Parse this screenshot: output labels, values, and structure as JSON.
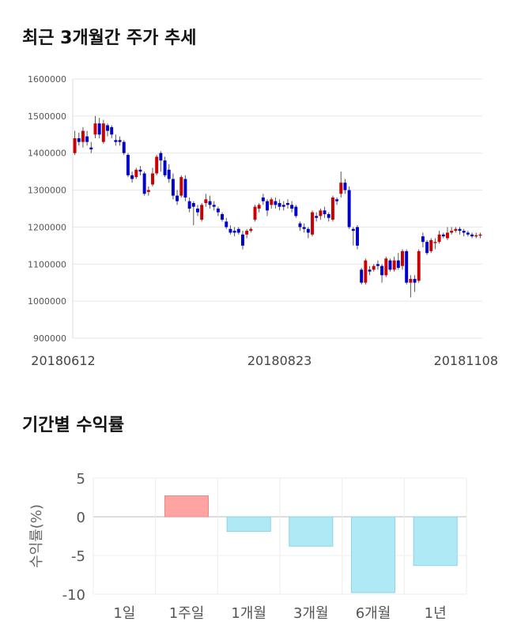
{
  "sections": {
    "trend_title": "최근 3개월간 주가 추세",
    "returns_title": "기간별 수익률"
  },
  "colors": {
    "up": "#cc0000",
    "down": "#0000cc",
    "positive_bar": "#ffa3a3",
    "negative_bar": "#aee9f5"
  },
  "chart_data": [
    {
      "type": "candlestick",
      "title": "최근 3개월간 주가 추세",
      "xlabel": "",
      "ylabel": "",
      "ylim": [
        900000,
        1600000
      ],
      "yticks": [
        900000,
        1000000,
        1100000,
        1200000,
        1300000,
        1400000,
        1500000,
        1600000
      ],
      "x_tick_labels": [
        "20180612",
        "20180823",
        "20181108"
      ],
      "x_tick_index": [
        0,
        50,
        99
      ],
      "grid": true,
      "candles": [
        [
          1400000,
          1440000,
          1460000,
          1395000
        ],
        [
          1440000,
          1430000,
          1455000,
          1420000
        ],
        [
          1430000,
          1460000,
          1470000,
          1415000
        ],
        [
          1445000,
          1430000,
          1460000,
          1420000
        ],
        [
          1415000,
          1410000,
          1430000,
          1400000
        ],
        [
          1450000,
          1480000,
          1500000,
          1440000
        ],
        [
          1480000,
          1450000,
          1495000,
          1440000
        ],
        [
          1430000,
          1480000,
          1490000,
          1425000
        ],
        [
          1475000,
          1460000,
          1480000,
          1445000
        ],
        [
          1470000,
          1450000,
          1475000,
          1440000
        ],
        [
          1435000,
          1430000,
          1450000,
          1420000
        ],
        [
          1435000,
          1430000,
          1445000,
          1420000
        ],
        [
          1430000,
          1400000,
          1435000,
          1395000
        ],
        [
          1395000,
          1340000,
          1400000,
          1335000
        ],
        [
          1340000,
          1330000,
          1350000,
          1320000
        ],
        [
          1335000,
          1355000,
          1360000,
          1330000
        ],
        [
          1355000,
          1350000,
          1365000,
          1340000
        ],
        [
          1345000,
          1290000,
          1350000,
          1285000
        ],
        [
          1295000,
          1300000,
          1310000,
          1285000
        ],
        [
          1315000,
          1345000,
          1360000,
          1310000
        ],
        [
          1345000,
          1390000,
          1395000,
          1340000
        ],
        [
          1400000,
          1380000,
          1405000,
          1350000
        ],
        [
          1380000,
          1340000,
          1390000,
          1335000
        ],
        [
          1355000,
          1330000,
          1370000,
          1320000
        ],
        [
          1330000,
          1285000,
          1345000,
          1275000
        ],
        [
          1285000,
          1270000,
          1300000,
          1260000
        ],
        [
          1285000,
          1335000,
          1340000,
          1280000
        ],
        [
          1330000,
          1280000,
          1340000,
          1270000
        ],
        [
          1270000,
          1250000,
          1280000,
          1240000
        ],
        [
          1265000,
          1255000,
          1270000,
          1205000
        ],
        [
          1250000,
          1240000,
          1260000,
          1230000
        ],
        [
          1220000,
          1260000,
          1265000,
          1215000
        ],
        [
          1265000,
          1275000,
          1290000,
          1255000
        ],
        [
          1270000,
          1260000,
          1285000,
          1250000
        ],
        [
          1260000,
          1255000,
          1270000,
          1245000
        ],
        [
          1250000,
          1240000,
          1255000,
          1230000
        ],
        [
          1235000,
          1220000,
          1240000,
          1215000
        ],
        [
          1215000,
          1200000,
          1225000,
          1195000
        ],
        [
          1195000,
          1185000,
          1205000,
          1180000
        ],
        [
          1190000,
          1185000,
          1200000,
          1175000
        ],
        [
          1195000,
          1185000,
          1200000,
          1180000
        ],
        [
          1180000,
          1150000,
          1190000,
          1140000
        ],
        [
          1180000,
          1190000,
          1195000,
          1170000
        ],
        [
          1190000,
          1195000,
          1200000,
          1185000
        ],
        [
          1220000,
          1255000,
          1260000,
          1215000
        ],
        [
          1250000,
          1260000,
          1265000,
          1240000
        ],
        [
          1280000,
          1270000,
          1290000,
          1260000
        ],
        [
          1270000,
          1245000,
          1275000,
          1230000
        ],
        [
          1260000,
          1275000,
          1280000,
          1250000
        ],
        [
          1270000,
          1260000,
          1280000,
          1250000
        ],
        [
          1265000,
          1255000,
          1275000,
          1245000
        ],
        [
          1260000,
          1255000,
          1270000,
          1245000
        ],
        [
          1265000,
          1260000,
          1275000,
          1250000
        ],
        [
          1260000,
          1250000,
          1270000,
          1240000
        ],
        [
          1255000,
          1230000,
          1260000,
          1225000
        ],
        [
          1210000,
          1200000,
          1215000,
          1190000
        ],
        [
          1200000,
          1195000,
          1210000,
          1185000
        ],
        [
          1195000,
          1185000,
          1200000,
          1170000
        ],
        [
          1180000,
          1240000,
          1245000,
          1175000
        ],
        [
          1230000,
          1225000,
          1240000,
          1215000
        ],
        [
          1230000,
          1245000,
          1250000,
          1220000
        ],
        [
          1245000,
          1235000,
          1255000,
          1225000
        ],
        [
          1235000,
          1225000,
          1240000,
          1215000
        ],
        [
          1220000,
          1280000,
          1285000,
          1215000
        ],
        [
          1275000,
          1270000,
          1280000,
          1260000
        ],
        [
          1290000,
          1320000,
          1350000,
          1280000
        ],
        [
          1320000,
          1300000,
          1330000,
          1290000
        ],
        [
          1300000,
          1200000,
          1310000,
          1195000
        ],
        [
          1195000,
          1190000,
          1200000,
          1150000
        ],
        [
          1200000,
          1150000,
          1205000,
          1140000
        ],
        [
          1085000,
          1050000,
          1090000,
          1045000
        ],
        [
          1050000,
          1110000,
          1115000,
          1045000
        ],
        [
          1085000,
          1080000,
          1095000,
          1070000
        ],
        [
          1085000,
          1095000,
          1100000,
          1080000
        ],
        [
          1100000,
          1095000,
          1110000,
          1085000
        ],
        [
          1095000,
          1070000,
          1100000,
          1050000
        ],
        [
          1070000,
          1115000,
          1120000,
          1065000
        ],
        [
          1110000,
          1085000,
          1115000,
          1080000
        ],
        [
          1085000,
          1110000,
          1120000,
          1080000
        ],
        [
          1110000,
          1090000,
          1130000,
          1085000
        ],
        [
          1095000,
          1135000,
          1140000,
          1085000
        ],
        [
          1135000,
          1050000,
          1140000,
          1045000
        ],
        [
          1050000,
          1060000,
          1070000,
          1010000
        ],
        [
          1060000,
          1050000,
          1070000,
          1025000
        ],
        [
          1055000,
          1135000,
          1140000,
          1050000
        ],
        [
          1175000,
          1160000,
          1185000,
          1145000
        ],
        [
          1160000,
          1130000,
          1165000,
          1125000
        ],
        [
          1135000,
          1165000,
          1170000,
          1130000
        ],
        [
          1160000,
          1160000,
          1170000,
          1140000
        ],
        [
          1160000,
          1180000,
          1190000,
          1155000
        ],
        [
          1180000,
          1175000,
          1185000,
          1170000
        ],
        [
          1170000,
          1185000,
          1200000,
          1165000
        ],
        [
          1185000,
          1190000,
          1200000,
          1180000
        ],
        [
          1190000,
          1195000,
          1200000,
          1185000
        ],
        [
          1195000,
          1190000,
          1200000,
          1180000
        ],
        [
          1190000,
          1185000,
          1195000,
          1175000
        ],
        [
          1185000,
          1180000,
          1190000,
          1175000
        ],
        [
          1180000,
          1175000,
          1185000,
          1170000
        ],
        [
          1175000,
          1178000,
          1185000,
          1170000
        ],
        [
          1178000,
          1180000,
          1185000,
          1170000
        ]
      ]
    },
    {
      "type": "bar",
      "title": "기간별 수익률",
      "ylabel": "수익률(%)",
      "ylim": [
        -10,
        5
      ],
      "yticks": [
        5,
        0,
        -5,
        -10
      ],
      "categories": [
        "1일",
        "1주일",
        "1개월",
        "3개월",
        "6개월",
        "1년"
      ],
      "values": [
        0,
        2.7,
        -1.9,
        -3.8,
        -9.8,
        -6.3
      ],
      "grid": true
    }
  ]
}
